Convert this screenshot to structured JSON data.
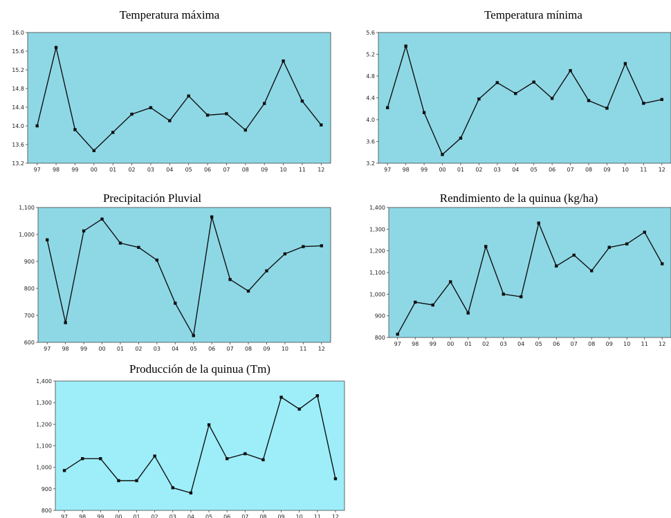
{
  "chart_data": [
    {
      "type": "line",
      "title": "Temperatura máxima",
      "categories": [
        "97",
        "98",
        "99",
        "00",
        "01",
        "02",
        "03",
        "04",
        "05",
        "06",
        "07",
        "08",
        "09",
        "10",
        "11",
        "12"
      ],
      "values": [
        14.0,
        15.68,
        13.92,
        13.47,
        13.86,
        14.25,
        14.39,
        14.11,
        14.64,
        14.23,
        14.26,
        13.91,
        14.48,
        15.39,
        14.53,
        14.02
      ],
      "ylim": [
        13.2,
        16.0
      ],
      "yticks": [
        "13.2",
        "13.6",
        "14.0",
        "14.4",
        "14.8",
        "15.2",
        "15.6",
        "16.0"
      ],
      "colors": {
        "background": "#8ED8E6",
        "line": "#111111"
      }
    },
    {
      "type": "line",
      "title": "Temperatura mínima",
      "categories": [
        "97",
        "98",
        "99",
        "00",
        "01",
        "02",
        "03",
        "04",
        "05",
        "06",
        "07",
        "08",
        "09",
        "10",
        "11",
        "12"
      ],
      "values": [
        4.22,
        5.35,
        4.13,
        3.36,
        3.66,
        4.38,
        4.68,
        4.48,
        4.69,
        4.39,
        4.9,
        4.35,
        4.21,
        5.03,
        4.3,
        4.37
      ],
      "ylim": [
        3.2,
        5.6
      ],
      "yticks": [
        "3.2",
        "3.6",
        "4.0",
        "4.4",
        "4.8",
        "5.2",
        "5.6"
      ],
      "colors": {
        "background": "#8ED8E6",
        "line": "#111111"
      }
    },
    {
      "type": "line",
      "title": "Precipitación Pluvial",
      "categories": [
        "97",
        "98",
        "99",
        "00",
        "01",
        "02",
        "03",
        "04",
        "05",
        "06",
        "07",
        "08",
        "09",
        "10",
        "11",
        "12"
      ],
      "values": [
        980,
        673,
        1013,
        1057,
        968,
        952,
        905,
        745,
        625,
        1065,
        833,
        790,
        865,
        928,
        955,
        958
      ],
      "ylim": [
        600,
        1100
      ],
      "yticks": [
        "600",
        "700",
        "800",
        "900",
        "1,000",
        "1,100"
      ],
      "colors": {
        "background": "#8ED8E6",
        "line": "#111111"
      }
    },
    {
      "type": "line",
      "title": "Rendimiento de la quinua (kg/ha)",
      "categories": [
        "97",
        "98",
        "99",
        "00",
        "01",
        "02",
        "03",
        "04",
        "05",
        "06",
        "07",
        "08",
        "09",
        "10",
        "11",
        "12"
      ],
      "values": [
        815,
        963,
        950,
        1057,
        913,
        1220,
        1000,
        988,
        1328,
        1130,
        1180,
        1108,
        1216,
        1232,
        1286,
        1140
      ],
      "ylim": [
        800,
        1400
      ],
      "yticks": [
        "800",
        "900",
        "1,000",
        "1,100",
        "1,200",
        "1,300",
        "1,400"
      ],
      "colors": {
        "background": "#8ED8E6",
        "line": "#111111"
      }
    },
    {
      "type": "line",
      "title": "Producción de la quinua (Tm)",
      "categories": [
        "97",
        "98",
        "99",
        "00",
        "01",
        "02",
        "03",
        "04",
        "05",
        "06",
        "07",
        "08",
        "09",
        "10",
        "11",
        "12"
      ],
      "values": [
        985,
        1040,
        1040,
        938,
        938,
        1052,
        905,
        881,
        1197,
        1040,
        1063,
        1035,
        1325,
        1270,
        1332,
        947
      ],
      "ylim": [
        800,
        1400
      ],
      "yticks": [
        "800",
        "900",
        "1,000",
        "1,100",
        "1,200",
        "1,300",
        "1,400"
      ],
      "colors": {
        "background": "#9EEEFA",
        "line": "#111111"
      }
    }
  ]
}
